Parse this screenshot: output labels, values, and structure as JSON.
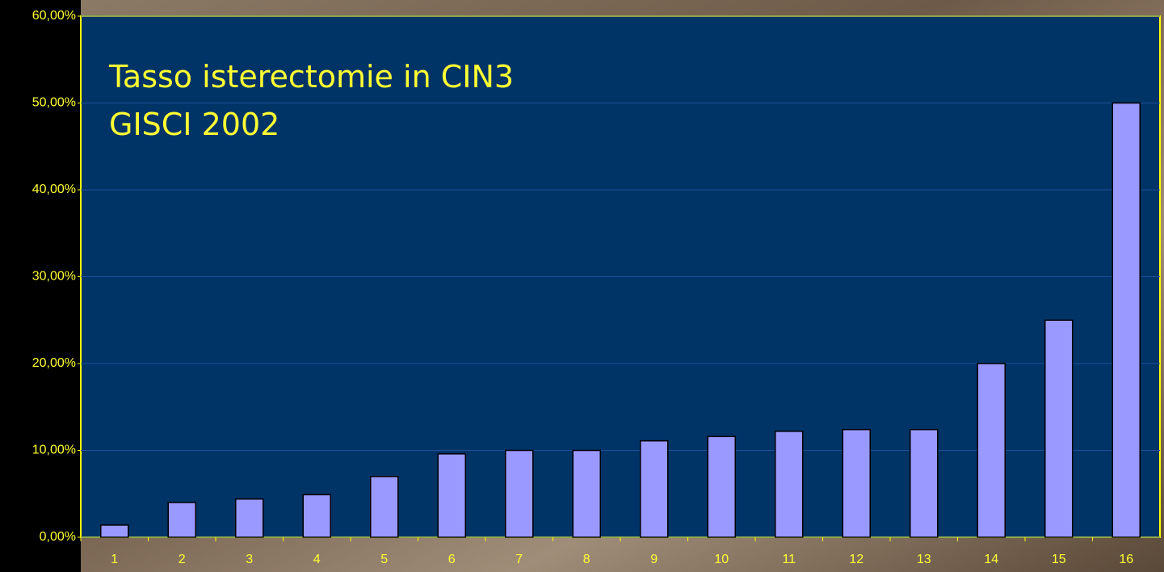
{
  "chart_data": {
    "type": "bar",
    "title": "Tasso isterectomie in CIN3",
    "subtitle": "GISCI 2002",
    "categories": [
      "1",
      "2",
      "3",
      "4",
      "5",
      "6",
      "7",
      "8",
      "9",
      "10",
      "11",
      "12",
      "13",
      "14",
      "15",
      "16"
    ],
    "values": [
      1.4,
      4.0,
      4.4,
      4.9,
      7.0,
      9.6,
      10.0,
      10.0,
      11.1,
      11.6,
      12.2,
      12.4,
      12.4,
      20.0,
      25.0,
      50.0
    ],
    "color": "#9999ff",
    "ylim": [
      0,
      60
    ],
    "yticks": [
      {
        "value": 0,
        "label": "0,00%"
      },
      {
        "value": 10,
        "label": "10,00%"
      },
      {
        "value": 20,
        "label": "20,00%"
      },
      {
        "value": 30,
        "label": "30,00%"
      },
      {
        "value": 40,
        "label": "40,00%"
      },
      {
        "value": 50,
        "label": "50,00%"
      },
      {
        "value": 60,
        "label": "60,00%"
      }
    ],
    "grid": true
  }
}
